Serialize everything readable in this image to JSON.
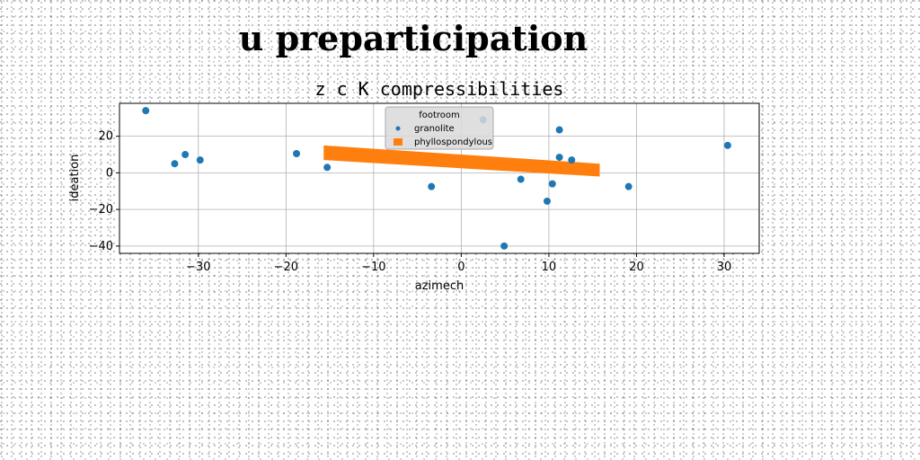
{
  "page_title": "u preparticipation",
  "chart_data": {
    "type": "scatter",
    "title": "z c K compressibilities",
    "xlabel": "azimech",
    "ylabel": "ideation",
    "xlim": [
      -39,
      34
    ],
    "ylim": [
      -44,
      38
    ],
    "xticks": [
      -30,
      -20,
      -10,
      0,
      10,
      20,
      30
    ],
    "yticks": [
      -40,
      -20,
      0,
      20
    ],
    "grid": true,
    "legend": {
      "title": "footroom",
      "position": "top-center",
      "entries": [
        "granolite",
        "phyllospondylous"
      ]
    },
    "colors": {
      "granolite": "#1f77b4",
      "phyllospondylous": "#ff7f0e"
    },
    "series": [
      {
        "name": "granolite",
        "kind": "scatter",
        "points": [
          [
            -36,
            34
          ],
          [
            -32.7,
            5
          ],
          [
            -31.5,
            10
          ],
          [
            -29.8,
            7
          ],
          [
            -18.8,
            10.5
          ],
          [
            -15.3,
            3
          ],
          [
            -3.4,
            -7.5
          ],
          [
            2.5,
            29
          ],
          [
            4.9,
            -40
          ],
          [
            6.8,
            -3.5
          ],
          [
            9.8,
            -15.5
          ],
          [
            10.4,
            -6
          ],
          [
            11.2,
            23.5
          ],
          [
            11.2,
            8.5
          ],
          [
            12.6,
            7
          ],
          [
            19.1,
            -7.5
          ],
          [
            30.4,
            15
          ]
        ]
      },
      {
        "name": "phyllospondylous",
        "kind": "band",
        "x": [
          -15.7,
          15.8
        ],
        "upper": [
          15,
          5
        ],
        "lower": [
          7,
          -2
        ]
      }
    ]
  }
}
